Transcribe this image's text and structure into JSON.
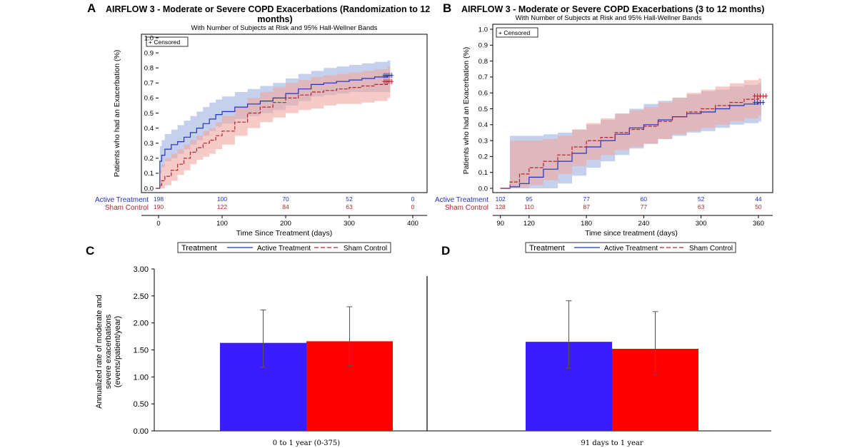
{
  "colors": {
    "active": "#2233bb",
    "sham": "#b0242f",
    "active_band": "#9fb2e0",
    "sham_band": "#f0a6a0",
    "bar_active": "#3a1cff",
    "bar_sham": "#ff0000"
  },
  "chart_data": [
    {
      "panel": "A",
      "type": "line",
      "title": "AIRFLOW 3 - Moderate or Severe COPD Exacerbations (Randomization to 12 months)",
      "title_lines": [
        "AIRFLOW 3 - Moderate or Severe COPD Exacerbations (Randomization to 12",
        "months)"
      ],
      "subtitle": "With Number of Subjects at Risk and 95% Hall-Wellner Bands",
      "xlabel": "Time Since Treatment (days)",
      "ylabel": "Patients who had an Exacerbation (%)",
      "xlim": [
        0,
        400
      ],
      "ylim": [
        0,
        1.0
      ],
      "x_ticks": [
        0,
        100,
        200,
        300,
        400
      ],
      "y_ticks": [
        "0.0",
        "0.1",
        "0.2",
        "0.3",
        "0.4",
        "0.5",
        "0.6",
        "0.7",
        "0.8",
        "0.9",
        "1.0"
      ],
      "censor_label": "+ Censored",
      "series": [
        {
          "name": "Active Treatment",
          "x": [
            0,
            2,
            5,
            10,
            20,
            30,
            40,
            50,
            60,
            70,
            80,
            90,
            100,
            120,
            140,
            160,
            180,
            200,
            220,
            240,
            260,
            280,
            300,
            320,
            340,
            360
          ],
          "y": [
            0.0,
            0.18,
            0.22,
            0.26,
            0.29,
            0.31,
            0.34,
            0.37,
            0.4,
            0.43,
            0.46,
            0.49,
            0.51,
            0.54,
            0.56,
            0.58,
            0.6,
            0.63,
            0.66,
            0.69,
            0.7,
            0.71,
            0.72,
            0.73,
            0.74,
            0.75
          ],
          "band_lower": [
            0.0,
            0.1,
            0.14,
            0.18,
            0.2,
            0.23,
            0.26,
            0.29,
            0.32,
            0.35,
            0.38,
            0.41,
            0.43,
            0.46,
            0.48,
            0.5,
            0.52,
            0.55,
            0.58,
            0.61,
            0.62,
            0.63,
            0.64,
            0.64,
            0.64,
            0.64
          ],
          "band_upper": [
            0.0,
            0.28,
            0.32,
            0.36,
            0.39,
            0.42,
            0.45,
            0.48,
            0.51,
            0.54,
            0.57,
            0.59,
            0.61,
            0.64,
            0.66,
            0.68,
            0.7,
            0.73,
            0.76,
            0.78,
            0.8,
            0.81,
            0.82,
            0.83,
            0.84,
            0.85
          ],
          "censored_x": [
            355,
            358,
            361,
            364,
            367
          ]
        },
        {
          "name": "Sham Control",
          "x": [
            0,
            2,
            5,
            10,
            20,
            30,
            40,
            50,
            60,
            70,
            80,
            90,
            100,
            120,
            140,
            160,
            180,
            200,
            220,
            240,
            260,
            280,
            300,
            320,
            340,
            360
          ],
          "y": [
            0.0,
            0.02,
            0.05,
            0.08,
            0.12,
            0.16,
            0.2,
            0.24,
            0.27,
            0.3,
            0.32,
            0.35,
            0.38,
            0.44,
            0.5,
            0.54,
            0.57,
            0.6,
            0.62,
            0.64,
            0.65,
            0.66,
            0.67,
            0.68,
            0.69,
            0.71
          ],
          "band_lower": [
            0.0,
            0.0,
            0.0,
            0.02,
            0.05,
            0.09,
            0.12,
            0.16,
            0.19,
            0.21,
            0.23,
            0.26,
            0.29,
            0.35,
            0.4,
            0.44,
            0.47,
            0.5,
            0.52,
            0.53,
            0.55,
            0.56,
            0.56,
            0.57,
            0.58,
            0.6
          ],
          "band_upper": [
            0.0,
            0.12,
            0.16,
            0.2,
            0.23,
            0.26,
            0.29,
            0.32,
            0.35,
            0.38,
            0.4,
            0.44,
            0.48,
            0.54,
            0.6,
            0.64,
            0.67,
            0.7,
            0.72,
            0.74,
            0.75,
            0.76,
            0.77,
            0.78,
            0.79,
            0.81
          ],
          "censored_x": [
            355,
            358,
            361,
            364,
            367
          ]
        }
      ],
      "at_risk": {
        "x": [
          0,
          100,
          200,
          300,
          400
        ],
        "rows": [
          {
            "name": "Active Treatment",
            "values": [
              "198",
              "100",
              "70",
              "52",
              "0"
            ]
          },
          {
            "name": "Sham Control",
            "values": [
              "190",
              "122",
              "84",
              "63",
              "0"
            ]
          }
        ]
      }
    },
    {
      "panel": "B",
      "type": "line",
      "title": "AIRFLOW 3 - Moderate or Severe COPD Exacerbations (3 to 12 months)",
      "subtitle": "With Number of Subjects at Risk and 95% Hall-Wellner Bands",
      "xlabel": "Time since treatment (days)",
      "ylabel": "Patients who had an Exacerbation (%)",
      "xlim": [
        82,
        375
      ],
      "ylim": [
        0,
        1.0
      ],
      "x_ticks": [
        90,
        120,
        180,
        240,
        300,
        360
      ],
      "y_ticks": [
        "0.0",
        "0.1",
        "0.2",
        "0.3",
        "0.4",
        "0.5",
        "0.6",
        "0.7",
        "0.8",
        "0.9",
        "1.0"
      ],
      "censor_label": "+ Censored",
      "series": [
        {
          "name": "Active Treatment",
          "x": [
            90,
            100,
            110,
            120,
            135,
            150,
            165,
            180,
            195,
            210,
            225,
            240,
            255,
            270,
            285,
            300,
            315,
            330,
            345,
            360
          ],
          "y": [
            0.0,
            0.01,
            0.03,
            0.07,
            0.12,
            0.17,
            0.22,
            0.26,
            0.3,
            0.34,
            0.38,
            0.4,
            0.43,
            0.45,
            0.47,
            0.48,
            0.5,
            0.52,
            0.53,
            0.54
          ],
          "band_lower": [
            0.0,
            0.0,
            0.0,
            0.0,
            0.0,
            0.03,
            0.08,
            0.13,
            0.17,
            0.21,
            0.25,
            0.28,
            0.31,
            0.33,
            0.35,
            0.36,
            0.38,
            0.4,
            0.41,
            0.42
          ],
          "band_upper": [
            0.0,
            0.33,
            0.33,
            0.33,
            0.34,
            0.35,
            0.37,
            0.4,
            0.43,
            0.47,
            0.5,
            0.53,
            0.55,
            0.57,
            0.59,
            0.61,
            0.62,
            0.64,
            0.65,
            0.66
          ],
          "censored_x": [
            356,
            359,
            362,
            365
          ]
        },
        {
          "name": "Sham Control",
          "x": [
            90,
            100,
            110,
            120,
            135,
            150,
            165,
            180,
            195,
            210,
            225,
            240,
            255,
            270,
            285,
            300,
            315,
            330,
            345,
            360
          ],
          "y": [
            0.0,
            0.04,
            0.09,
            0.13,
            0.17,
            0.21,
            0.26,
            0.3,
            0.32,
            0.35,
            0.37,
            0.39,
            0.42,
            0.45,
            0.48,
            0.5,
            0.52,
            0.54,
            0.56,
            0.58
          ],
          "band_lower": [
            0.0,
            0.0,
            0.0,
            0.02,
            0.05,
            0.09,
            0.14,
            0.18,
            0.21,
            0.24,
            0.26,
            0.28,
            0.31,
            0.34,
            0.36,
            0.38,
            0.4,
            0.42,
            0.44,
            0.46
          ],
          "band_upper": [
            0.0,
            0.3,
            0.3,
            0.3,
            0.31,
            0.33,
            0.37,
            0.41,
            0.44,
            0.47,
            0.49,
            0.51,
            0.54,
            0.57,
            0.6,
            0.62,
            0.64,
            0.66,
            0.68,
            0.69
          ],
          "censored_x": [
            356,
            359,
            362,
            365,
            368
          ]
        }
      ],
      "at_risk": {
        "x": [
          90,
          120,
          180,
          240,
          300,
          360
        ],
        "rows": [
          {
            "name": "Active Treatment",
            "values": [
              "102",
              "95",
              "77",
              "60",
              "52",
              "44"
            ]
          },
          {
            "name": "Sham Control",
            "values": [
              "128",
              "110",
              "87",
              "77",
              "63",
              "50"
            ]
          }
        ]
      }
    },
    {
      "panel": "C/D",
      "type": "bar",
      "panel_labels": [
        "C",
        "D"
      ],
      "legend": {
        "title": "Treatment",
        "entries": [
          "Active Treatment",
          "Sham Control"
        ]
      },
      "ylabel_lines": [
        "Annualized rate of moderate and",
        "severe exacerbations",
        "(events/patient/year)"
      ],
      "ylim": [
        0,
        3.0
      ],
      "y_ticks": [
        "0.00",
        "0.50",
        "1.00",
        "1.50",
        "2.00",
        "2.50",
        "3.00"
      ],
      "categories": [
        "0 to 1 year (0-375)",
        "91 days to 1 year"
      ],
      "series": [
        {
          "name": "Active Treatment",
          "values": [
            1.63,
            1.65
          ],
          "err_low": [
            1.18,
            1.16
          ],
          "err_high": [
            2.24,
            2.41
          ]
        },
        {
          "name": "Sham Control",
          "values": [
            1.66,
            1.52
          ],
          "err_low": [
            1.21,
            1.04
          ],
          "err_high": [
            2.3,
            2.21
          ]
        }
      ]
    }
  ]
}
